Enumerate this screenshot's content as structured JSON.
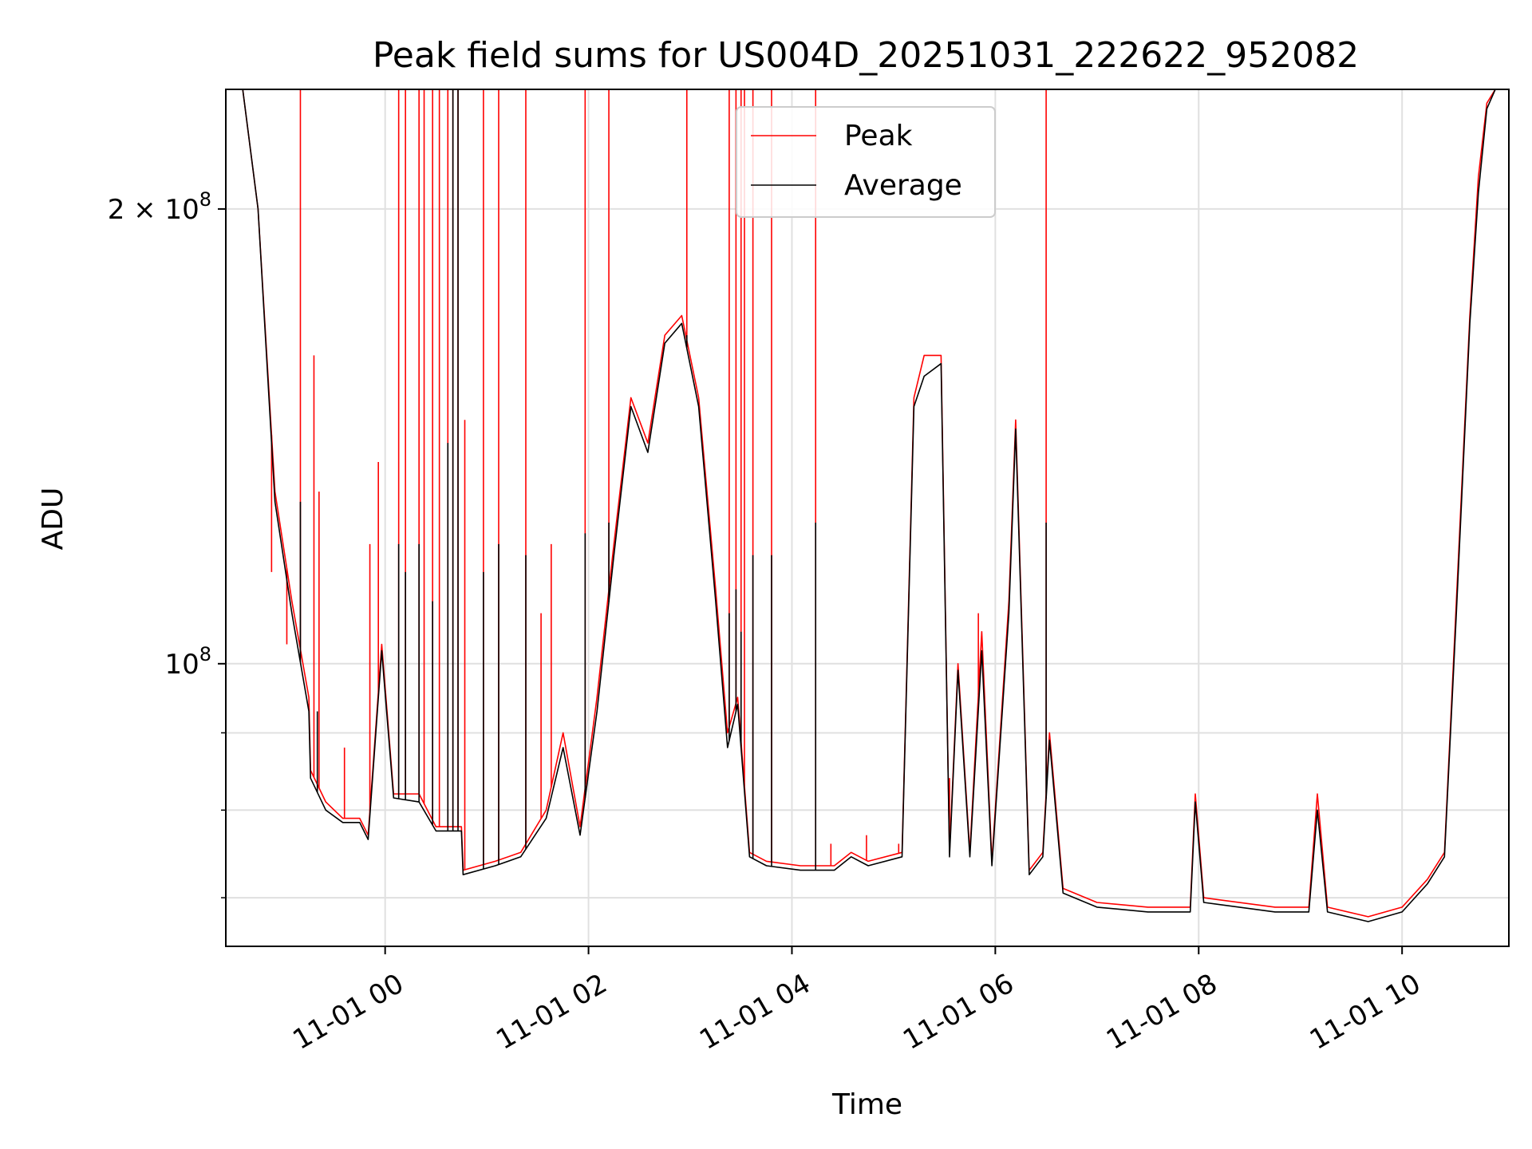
{
  "chart_data": {
    "type": "line",
    "title": "Peak field sums for US004D_20251031_222622_952082",
    "xlabel": "Time",
    "ylabel": "ADU",
    "x_unit": "time",
    "xlim": [
      "10-31 22:26",
      "11-01 11:03"
    ],
    "x_ticks": [
      {
        "t": "11-01 00:00",
        "label": "11-01 00"
      },
      {
        "t": "11-01 02:00",
        "label": "11-01 02"
      },
      {
        "t": "11-01 04:00",
        "label": "11-01 04"
      },
      {
        "t": "11-01 06:00",
        "label": "11-01 06"
      },
      {
        "t": "11-01 08:00",
        "label": "11-01 08"
      },
      {
        "t": "11-01 10:00",
        "label": "11-01 10"
      }
    ],
    "y_scale": "log",
    "ylim": [
      65000000,
      240000000
    ],
    "y_major_ticks": [
      {
        "value": 100000000,
        "base": "10",
        "exp": "8",
        "coef": ""
      },
      {
        "value": 200000000,
        "base": "10",
        "exp": "8",
        "coef": "2 × "
      }
    ],
    "y_minor_ticks": [
      70000000,
      80000000,
      90000000
    ],
    "grid": true,
    "legend_position": "upper-center",
    "series": [
      {
        "name": "Peak",
        "color": "#ff0000",
        "points": [
          [
            "10-31 22:26",
            240000000
          ],
          [
            "10-31 22:36",
            240000000
          ],
          [
            "10-31 22:45",
            200000000
          ],
          [
            "10-31 22:55",
            130000000
          ],
          [
            "10-31 23:05",
            110000000
          ],
          [
            "10-31 23:15",
            95000000
          ],
          [
            "10-31 23:16",
            85000000
          ],
          [
            "10-31 23:25",
            81000000
          ],
          [
            "10-31 23:35",
            79000000
          ],
          [
            "10-31 23:45",
            79000000
          ],
          [
            "10-31 23:50",
            77000000
          ],
          [
            "10-31 23:58",
            103000000
          ],
          [
            "11-01 00:05",
            82000000
          ],
          [
            "11-01 00:20",
            82000000
          ],
          [
            "11-01 00:30",
            78000000
          ],
          [
            "11-01 00:45",
            78000000
          ],
          [
            "11-01 00:46",
            73000000
          ],
          [
            "11-01 01:05",
            74000000
          ],
          [
            "11-01 01:20",
            75000000
          ],
          [
            "11-01 01:35",
            80000000
          ],
          [
            "11-01 01:45",
            90000000
          ],
          [
            "11-01 01:55",
            78000000
          ],
          [
            "11-01 02:05",
            95000000
          ],
          [
            "11-01 02:15",
            120000000
          ],
          [
            "11-01 02:25",
            150000000
          ],
          [
            "11-01 02:35",
            140000000
          ],
          [
            "11-01 02:45",
            165000000
          ],
          [
            "11-01 02:55",
            170000000
          ],
          [
            "11-01 03:05",
            150000000
          ],
          [
            "11-01 03:15",
            112000000
          ],
          [
            "11-01 03:22",
            90000000
          ],
          [
            "11-01 03:28",
            95000000
          ],
          [
            "11-01 03:35",
            75000000
          ],
          [
            "11-01 03:45",
            74000000
          ],
          [
            "11-01 04:05",
            73500000
          ],
          [
            "11-01 04:25",
            73500000
          ],
          [
            "11-01 04:35",
            75000000
          ],
          [
            "11-01 04:45",
            74000000
          ],
          [
            "11-01 05:05",
            75000000
          ],
          [
            "11-01 05:12",
            150000000
          ],
          [
            "11-01 05:18",
            160000000
          ],
          [
            "11-01 05:28",
            160000000
          ],
          [
            "11-01 05:33",
            75000000
          ],
          [
            "11-01 05:38",
            100000000
          ],
          [
            "11-01 05:45",
            75000000
          ],
          [
            "11-01 05:52",
            105000000
          ],
          [
            "11-01 05:58",
            74000000
          ],
          [
            "11-01 06:08",
            110000000
          ],
          [
            "11-01 06:12",
            145000000
          ],
          [
            "11-01 06:20",
            73000000
          ],
          [
            "11-01 06:28",
            75000000
          ],
          [
            "11-01 06:32",
            90000000
          ],
          [
            "11-01 06:40",
            71000000
          ],
          [
            "11-01 07:00",
            69500000
          ],
          [
            "11-01 07:30",
            69000000
          ],
          [
            "11-01 07:55",
            69000000
          ],
          [
            "11-01 07:58",
            82000000
          ],
          [
            "11-01 08:03",
            70000000
          ],
          [
            "11-01 08:45",
            69000000
          ],
          [
            "11-01 09:05",
            69000000
          ],
          [
            "11-01 09:10",
            82000000
          ],
          [
            "11-01 09:16",
            69000000
          ],
          [
            "11-01 09:40",
            68000000
          ],
          [
            "11-01 10:00",
            69000000
          ],
          [
            "11-01 10:15",
            72000000
          ],
          [
            "11-01 10:25",
            75000000
          ],
          [
            "11-01 10:32",
            110000000
          ],
          [
            "11-01 10:40",
            170000000
          ],
          [
            "11-01 10:45",
            210000000
          ],
          [
            "11-01 10:50",
            235000000
          ],
          [
            "11-01 10:55",
            240000000
          ],
          [
            "11-01 11:03",
            240000000
          ]
        ],
        "spikes": [
          [
            "10-31 22:53",
            115000000
          ],
          [
            "10-31 23:02",
            103000000
          ],
          [
            "10-31 23:10",
            240000000
          ],
          [
            "10-31 23:18",
            160000000
          ],
          [
            "10-31 23:21",
            130000000
          ],
          [
            "10-31 23:36",
            88000000
          ],
          [
            "10-31 23:51",
            120000000
          ],
          [
            "10-31 23:56",
            136000000
          ],
          [
            "11-01 00:08",
            240000000
          ],
          [
            "11-01 00:12",
            240000000
          ],
          [
            "11-01 00:20",
            240000000
          ],
          [
            "11-01 00:23",
            240000000
          ],
          [
            "11-01 00:28",
            240000000
          ],
          [
            "11-01 00:32",
            240000000
          ],
          [
            "11-01 00:37",
            240000000
          ],
          [
            "11-01 00:40",
            240000000
          ],
          [
            "11-01 00:43",
            240000000
          ],
          [
            "11-01 00:47",
            145000000
          ],
          [
            "11-01 00:58",
            240000000
          ],
          [
            "11-01 01:07",
            240000000
          ],
          [
            "11-01 01:23",
            240000000
          ],
          [
            "11-01 01:32",
            108000000
          ],
          [
            "11-01 01:38",
            120000000
          ],
          [
            "11-01 01:58",
            240000000
          ],
          [
            "11-01 02:12",
            240000000
          ],
          [
            "11-01 02:58",
            240000000
          ],
          [
            "11-01 03:23",
            240000000
          ],
          [
            "11-01 03:27",
            240000000
          ],
          [
            "11-01 03:30",
            240000000
          ],
          [
            "11-01 03:32",
            240000000
          ],
          [
            "11-01 03:37",
            240000000
          ],
          [
            "11-01 03:48",
            240000000
          ],
          [
            "11-01 04:14",
            240000000
          ],
          [
            "11-01 06:30",
            240000000
          ],
          [
            "11-01 05:33",
            84000000
          ],
          [
            "11-01 05:50",
            108000000
          ],
          [
            "11-01 04:23",
            76000000
          ],
          [
            "11-01 04:44",
            77000000
          ],
          [
            "11-01 05:03",
            76000000
          ]
        ]
      },
      {
        "name": "Average",
        "color": "#000000",
        "points": [
          [
            "10-31 22:26",
            240000000
          ],
          [
            "10-31 22:36",
            240000000
          ],
          [
            "10-31 22:45",
            200000000
          ],
          [
            "10-31 22:55",
            128000000
          ],
          [
            "10-31 23:05",
            108000000
          ],
          [
            "10-31 23:15",
            93000000
          ],
          [
            "10-31 23:16",
            84000000
          ],
          [
            "10-31 23:25",
            80000000
          ],
          [
            "10-31 23:35",
            78500000
          ],
          [
            "10-31 23:45",
            78500000
          ],
          [
            "10-31 23:50",
            76500000
          ],
          [
            "10-31 23:58",
            102000000
          ],
          [
            "11-01 00:05",
            81500000
          ],
          [
            "11-01 00:20",
            81000000
          ],
          [
            "11-01 00:30",
            77500000
          ],
          [
            "11-01 00:45",
            77500000
          ],
          [
            "11-01 00:46",
            72500000
          ],
          [
            "11-01 01:05",
            73500000
          ],
          [
            "11-01 01:20",
            74500000
          ],
          [
            "11-01 01:35",
            79000000
          ],
          [
            "11-01 01:45",
            88000000
          ],
          [
            "11-01 01:55",
            77000000
          ],
          [
            "11-01 02:05",
            93000000
          ],
          [
            "11-01 02:15",
            118000000
          ],
          [
            "11-01 02:25",
            148000000
          ],
          [
            "11-01 02:35",
            138000000
          ],
          [
            "11-01 02:45",
            163000000
          ],
          [
            "11-01 02:55",
            168000000
          ],
          [
            "11-01 03:05",
            148000000
          ],
          [
            "11-01 03:15",
            110000000
          ],
          [
            "11-01 03:22",
            88000000
          ],
          [
            "11-01 03:28",
            94000000
          ],
          [
            "11-01 03:35",
            74500000
          ],
          [
            "11-01 03:45",
            73500000
          ],
          [
            "11-01 04:05",
            73000000
          ],
          [
            "11-01 04:25",
            73000000
          ],
          [
            "11-01 04:35",
            74500000
          ],
          [
            "11-01 04:45",
            73500000
          ],
          [
            "11-01 05:05",
            74500000
          ],
          [
            "11-01 05:12",
            148000000
          ],
          [
            "11-01 05:18",
            155000000
          ],
          [
            "11-01 05:28",
            158000000
          ],
          [
            "11-01 05:33",
            74500000
          ],
          [
            "11-01 05:38",
            99000000
          ],
          [
            "11-01 05:45",
            74500000
          ],
          [
            "11-01 05:52",
            102000000
          ],
          [
            "11-01 05:58",
            73500000
          ],
          [
            "11-01 06:08",
            108000000
          ],
          [
            "11-01 06:12",
            143000000
          ],
          [
            "11-01 06:20",
            72500000
          ],
          [
            "11-01 06:28",
            74500000
          ],
          [
            "11-01 06:32",
            89000000
          ],
          [
            "11-01 06:40",
            70500000
          ],
          [
            "11-01 07:00",
            69000000
          ],
          [
            "11-01 07:30",
            68500000
          ],
          [
            "11-01 07:55",
            68500000
          ],
          [
            "11-01 07:58",
            81000000
          ],
          [
            "11-01 08:03",
            69500000
          ],
          [
            "11-01 08:45",
            68500000
          ],
          [
            "11-01 09:05",
            68500000
          ],
          [
            "11-01 09:10",
            80000000
          ],
          [
            "11-01 09:16",
            68500000
          ],
          [
            "11-01 09:40",
            67500000
          ],
          [
            "11-01 10:00",
            68500000
          ],
          [
            "11-01 10:15",
            71500000
          ],
          [
            "11-01 10:25",
            74500000
          ],
          [
            "11-01 10:32",
            108000000
          ],
          [
            "11-01 10:40",
            168000000
          ],
          [
            "11-01 10:45",
            205000000
          ],
          [
            "11-01 10:50",
            233000000
          ],
          [
            "11-01 10:55",
            240000000
          ],
          [
            "11-01 11:03",
            240000000
          ]
        ],
        "spikes": [
          [
            "10-31 23:10",
            128000000
          ],
          [
            "10-31 23:20",
            93000000
          ],
          [
            "11-01 00:08",
            120000000
          ],
          [
            "11-01 00:12",
            115000000
          ],
          [
            "11-01 00:20",
            120000000
          ],
          [
            "11-01 00:28",
            110000000
          ],
          [
            "11-01 00:37",
            140000000
          ],
          [
            "11-01 00:40",
            240000000
          ],
          [
            "11-01 00:43",
            240000000
          ],
          [
            "11-01 00:58",
            115000000
          ],
          [
            "11-01 01:07",
            120000000
          ],
          [
            "11-01 01:23",
            118000000
          ],
          [
            "11-01 01:58",
            122000000
          ],
          [
            "11-01 02:12",
            124000000
          ],
          [
            "11-01 02:58",
            165000000
          ],
          [
            "11-01 03:23",
            108000000
          ],
          [
            "11-01 03:27",
            112000000
          ],
          [
            "11-01 03:30",
            105000000
          ],
          [
            "11-01 03:37",
            118000000
          ],
          [
            "11-01 03:48",
            118000000
          ],
          [
            "11-01 04:14",
            124000000
          ],
          [
            "11-01 06:30",
            124000000
          ]
        ]
      }
    ]
  }
}
